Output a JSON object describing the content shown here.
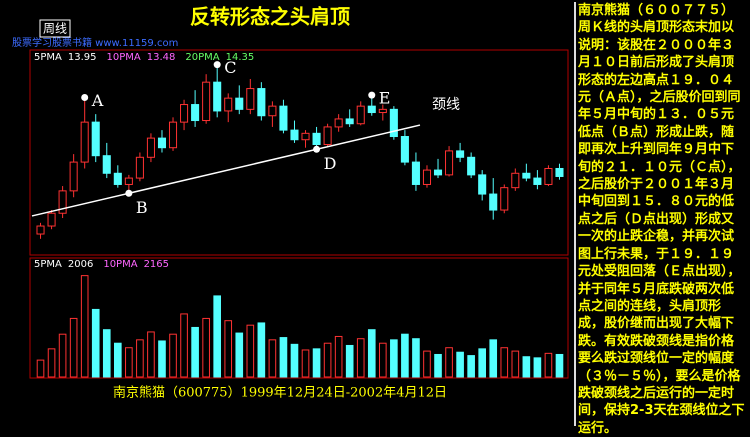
{
  "chart_data": {
    "type": "candlestick",
    "title": "反转形态之头肩顶",
    "period_label": "周线",
    "watermark": "股票学习股票书籍 www.11159.com",
    "caption": "南京熊猫（600775）1999年12月24日-2002年4月12日",
    "up_color": "#ff3232",
    "down_color": "#54ffff",
    "ylim": [
      9.5,
      21.7
    ],
    "vlim": [
      0,
      9500
    ],
    "open": [
      10.5,
      11.0,
      11.8,
      13.2,
      15.0,
      17.5,
      15.4,
      14.3,
      13.6,
      14.0,
      15.3,
      16.5,
      15.9,
      17.5,
      18.6,
      17.6,
      20.0,
      18.2,
      19.0,
      18.3,
      19.6,
      17.9,
      18.5,
      17.0,
      16.4,
      16.8,
      16.1,
      17.2,
      17.7,
      17.4,
      18.5,
      18.1,
      18.3,
      16.6,
      15.0,
      13.6,
      14.5,
      14.2,
      15.7,
      15.3,
      14.2,
      13.0,
      12.0,
      13.4,
      14.3,
      14.0,
      13.6,
      14.6
    ],
    "high": [
      11.2,
      12.0,
      13.5,
      15.5,
      19.04,
      18.0,
      16.2,
      14.8,
      14.2,
      15.6,
      16.8,
      17.0,
      17.8,
      18.9,
      19.5,
      20.5,
      21.1,
      19.3,
      19.8,
      20.2,
      20.0,
      18.8,
      18.9,
      17.6,
      17.0,
      17.2,
      17.4,
      18.0,
      18.3,
      18.8,
      19.19,
      18.6,
      18.5,
      17.0,
      15.6,
      14.8,
      15.2,
      16.0,
      16.2,
      15.6,
      14.5,
      14.0,
      13.6,
      14.6,
      14.9,
      14.5,
      14.8,
      14.9
    ],
    "low": [
      10.2,
      10.8,
      11.5,
      12.8,
      14.6,
      15.0,
      14.0,
      13.4,
      13.05,
      13.8,
      15.0,
      15.6,
      15.7,
      17.0,
      17.2,
      17.4,
      17.8,
      17.5,
      18.0,
      18.0,
      17.6,
      17.2,
      16.8,
      16.2,
      15.9,
      15.8,
      16.0,
      16.9,
      17.2,
      17.3,
      17.9,
      17.6,
      16.4,
      14.8,
      13.2,
      13.4,
      14.0,
      14.1,
      15.0,
      14.0,
      12.6,
      11.4,
      11.8,
      13.2,
      13.8,
      13.3,
      13.5,
      13.9
    ],
    "close": [
      11.0,
      11.8,
      13.2,
      15.0,
      17.5,
      15.4,
      14.3,
      13.6,
      14.0,
      15.3,
      16.5,
      15.9,
      17.5,
      18.6,
      17.6,
      20.0,
      18.2,
      19.0,
      18.3,
      19.6,
      17.9,
      18.5,
      17.0,
      16.4,
      16.8,
      16.1,
      17.2,
      17.7,
      17.4,
      18.5,
      18.1,
      18.3,
      16.6,
      15.0,
      13.6,
      14.5,
      14.2,
      15.7,
      15.3,
      14.2,
      13.0,
      12.0,
      13.4,
      14.3,
      14.0,
      13.6,
      14.6,
      14.1
    ],
    "volume": [
      1500,
      2500,
      3800,
      5200,
      9000,
      6000,
      4200,
      3000,
      2600,
      3300,
      4000,
      3200,
      3800,
      5600,
      4400,
      5200,
      7200,
      5000,
      3900,
      4600,
      4800,
      3300,
      3500,
      2900,
      2400,
      2500,
      3000,
      3600,
      2800,
      3400,
      4200,
      3000,
      3300,
      3800,
      3400,
      2300,
      2000,
      2600,
      2200,
      1900,
      2500,
      3300,
      2600,
      2300,
      1800,
      1700,
      2100,
      2000
    ],
    "ma_legend": [
      {
        "name": "5PMA",
        "value": 13.95,
        "color": "#ffffff"
      },
      {
        "name": "10PMA",
        "value": 13.48,
        "color": "#ff66ff"
      },
      {
        "name": "20PMA",
        "value": 14.35,
        "color": "#66ff66"
      }
    ],
    "volume_legend": [
      {
        "name": "5PMA",
        "value": 2006,
        "color": "#ffffff"
      },
      {
        "name": "10PMA",
        "value": 2165,
        "color": "#ff66ff"
      }
    ],
    "annotations": [
      {
        "text": "A",
        "value": 19.04
      },
      {
        "text": "B",
        "value": 13.05
      },
      {
        "text": "C",
        "value": 21.1
      },
      {
        "text": "D",
        "value": 15.8
      },
      {
        "text": "E",
        "value": 19.19
      }
    ],
    "neckline_label": "颈线"
  },
  "explanation": "南京熊猫（６００７７５）周Ｋ线的头肩顶形态末加以说明：该股在２０００年３月１０日前后形成了头肩顶形态的左边高点１９．０４元（Ａ点），之后股价回到同年５月中旬的１３．０５元低点（Ｂ点）形成止跌，随即再次上升到同年９月中下旬的２１．１０元（Ｃ点），之后股价于２００１年３月中旬回到１５．８０元的低点之后（Ｄ点出现）形成又一次的止跌企稳，并再次试图上行未果，于１９．１９元处受阻回落（Ｅ点出现），并于同年５月底跌破两次低点之间的连线，头肩顶形成，股价继而出现了大幅下跌。有效跌破颈线是指价格要么跌过颈线位一定的幅度（３％－５％），要么是价格跌破颈线之后运行的一定时间，保持2-3天在颈线位之下运行。"
}
